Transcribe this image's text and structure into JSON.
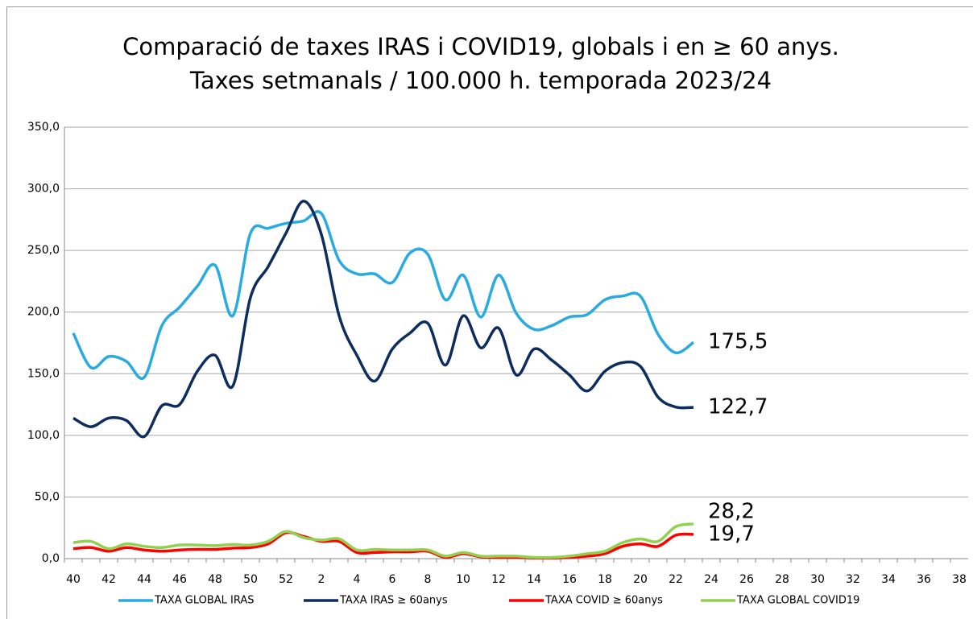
{
  "chart_data": {
    "type": "line",
    "title": "Comparació de taxes IRAS i COVID19, globals i en ≥ 60 anys.",
    "subtitle": "Taxes setmanals / 100.000 h. temporada 2023/24",
    "categories": [
      "40",
      null,
      "42",
      null,
      "44",
      null,
      "46",
      null,
      "48",
      null,
      "50",
      null,
      "52",
      null,
      "2",
      null,
      "4",
      null,
      "6",
      null,
      "8",
      null,
      "10",
      null,
      "12",
      null,
      "14",
      null,
      "16",
      null,
      "18",
      null,
      "20",
      null,
      "22",
      null,
      "24",
      null,
      "26",
      null,
      "28",
      null,
      "30",
      null,
      "32",
      null,
      "34",
      null,
      "36",
      null,
      "38"
    ],
    "ylim": [
      0,
      350
    ],
    "yticks": [
      {
        "value": 0,
        "label": "0,0"
      },
      {
        "value": 50,
        "label": "50,0"
      },
      {
        "value": 100,
        "label": "100,0"
      },
      {
        "value": 150,
        "label": "150,0"
      },
      {
        "value": 200,
        "label": "200,0"
      },
      {
        "value": 250,
        "label": "250,0"
      },
      {
        "value": 300,
        "label": "300,0"
      },
      {
        "value": 350,
        "label": "350,0"
      }
    ],
    "grid": true,
    "legend": "bottom",
    "series": [
      {
        "name": "TAXA GLOBAL IRAS",
        "color": "#29abe2",
        "values": [
          183,
          155,
          164,
          160,
          147,
          189,
          204,
          221,
          238,
          197,
          264,
          268,
          272,
          274,
          280,
          242,
          231,
          231,
          224,
          248,
          247,
          210,
          230,
          196,
          230,
          199,
          186,
          189,
          196,
          198,
          210,
          213,
          213,
          182,
          167,
          175.5,
          null,
          null,
          null,
          null,
          null,
          null,
          null,
          null,
          null,
          null,
          null,
          null,
          null,
          null,
          null
        ],
        "value_labels": [
          null,
          null,
          null,
          null,
          null,
          null,
          null,
          null,
          null,
          null,
          null,
          null,
          null,
          null,
          null,
          null,
          null,
          null,
          null,
          null,
          null,
          null,
          null,
          null,
          null,
          null,
          null,
          null,
          null,
          null,
          null,
          null,
          null,
          null,
          null,
          "175,5",
          null,
          null,
          null,
          null,
          null,
          null,
          null,
          null,
          null,
          null,
          null,
          null,
          null,
          null,
          null
        ]
      },
      {
        "name": "TAXA  IRAS ≥ 60anys",
        "color": "#0d2d5e",
        "values": [
          114,
          107,
          114,
          112,
          99,
          124,
          125,
          152,
          165,
          140,
          212,
          237,
          264,
          290,
          263,
          197,
          165,
          144,
          170,
          183,
          191,
          157,
          197,
          171,
          187,
          149,
          170,
          161,
          149,
          136,
          152,
          159,
          156,
          131,
          123,
          122.7,
          null,
          null,
          null,
          null,
          null,
          null,
          null,
          null,
          null,
          null,
          null,
          null,
          null,
          null,
          null
        ],
        "value_labels": [
          null,
          null,
          null,
          null,
          null,
          null,
          null,
          null,
          null,
          null,
          null,
          null,
          null,
          null,
          null,
          null,
          null,
          null,
          null,
          null,
          null,
          null,
          null,
          null,
          null,
          null,
          null,
          null,
          null,
          null,
          null,
          null,
          null,
          null,
          null,
          "122,7",
          null,
          null,
          null,
          null,
          null,
          null,
          null,
          null,
          null,
          null,
          null,
          null,
          null,
          null,
          null
        ]
      },
      {
        "name": "TAXA COVID ≥ 60anys",
        "color": "#ff0000",
        "values": [
          8,
          9,
          6,
          9,
          7,
          6,
          7,
          7.5,
          7.5,
          8.5,
          9,
          12,
          21,
          18,
          14,
          14,
          5,
          5,
          5.5,
          5.5,
          6,
          1,
          4,
          1.5,
          1,
          1,
          0.5,
          0.5,
          1,
          2,
          4,
          10,
          12,
          10,
          19,
          19.7,
          null,
          null,
          null,
          null,
          null,
          null,
          null,
          null,
          null,
          null,
          null,
          null,
          null,
          null,
          null
        ],
        "value_labels": [
          null,
          null,
          null,
          null,
          null,
          null,
          null,
          null,
          null,
          null,
          null,
          null,
          null,
          null,
          null,
          null,
          null,
          null,
          null,
          null,
          null,
          null,
          null,
          null,
          null,
          null,
          null,
          null,
          null,
          null,
          null,
          null,
          null,
          null,
          null,
          "19,7",
          null,
          null,
          null,
          null,
          null,
          null,
          null,
          null,
          null,
          null,
          null,
          null,
          null,
          null,
          null
        ]
      },
      {
        "name": "TAXA GLOBAL COVID19",
        "color": "#92d050",
        "values": [
          13,
          14,
          8,
          12,
          10,
          9,
          11,
          11,
          10.5,
          11.5,
          11,
          14,
          22,
          17,
          15,
          16,
          7,
          7.5,
          7,
          7,
          7,
          2,
          5,
          2,
          2,
          2,
          1,
          1,
          2,
          4,
          6,
          13,
          16,
          14,
          26,
          28.2,
          null,
          null,
          null,
          null,
          null,
          null,
          null,
          null,
          null,
          null,
          null,
          null,
          null,
          null,
          null
        ],
        "value_labels": [
          null,
          null,
          null,
          null,
          null,
          null,
          null,
          null,
          null,
          null,
          null,
          null,
          null,
          null,
          null,
          null,
          null,
          null,
          null,
          null,
          null,
          null,
          null,
          null,
          null,
          null,
          null,
          null,
          null,
          null,
          null,
          null,
          null,
          null,
          null,
          "28,2",
          null,
          null,
          null,
          null,
          null,
          null,
          null,
          null,
          null,
          null,
          null,
          null,
          null,
          null,
          null
        ]
      }
    ]
  }
}
